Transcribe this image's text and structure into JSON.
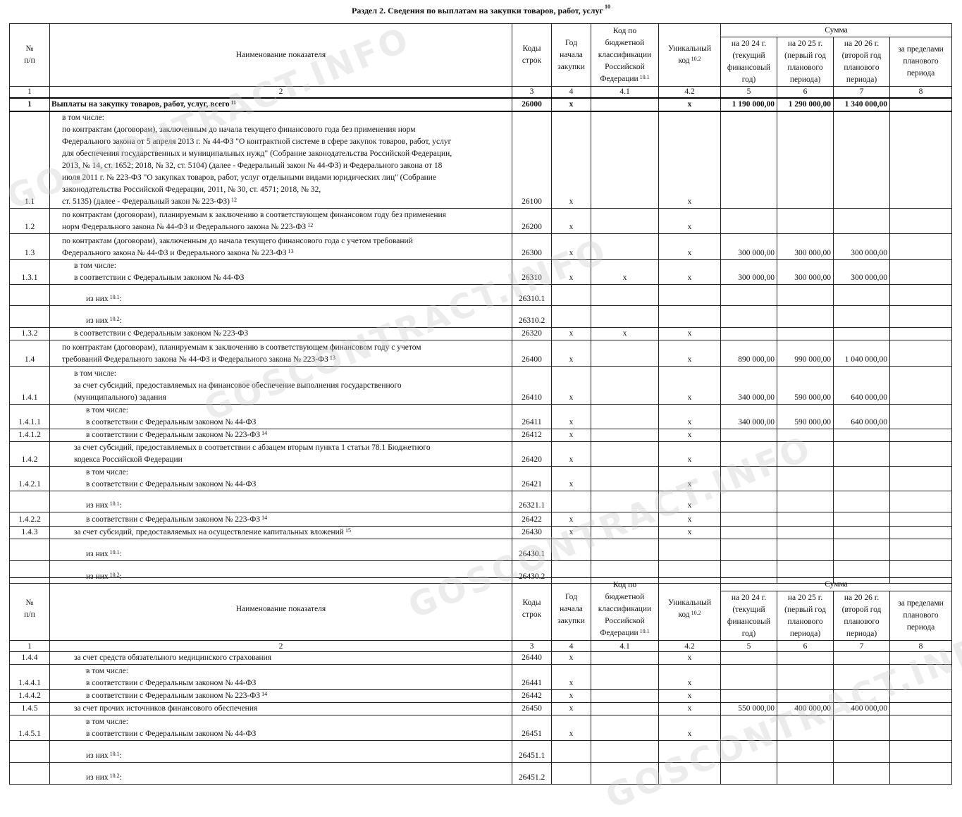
{
  "title": "Раздел 2. Сведения по выплатам на закупки товаров, работ, услуг",
  "title_sup": "10",
  "watermark": "GOSCONTRACT.INFO",
  "header": {
    "num": "№\nп/п",
    "name": "Наименование показателя",
    "code": "Коды\nстрок",
    "year": "Год\nначала\nзакупки",
    "kbk": "Код по\nбюджетной\nклассификации\nРоссийской\nФедерации",
    "kbk_sup": "10.1",
    "uniq": "Уникальный\nкод",
    "uniq_sup": "10.2",
    "sum": "Сумма",
    "y1": "на 20 24 г.\n(текущий\nфинансовый\nгод)",
    "y2": "на 20 25 г.\n(первый год\nпланового\nпериода)",
    "y3": "на 20 26 г.\n(второй год\nпланового\nпериода)",
    "beyond": "за пределами\nпланового\nпериода",
    "colnums": [
      "1",
      "2",
      "3",
      "4",
      "4.1",
      "4.2",
      "5",
      "6",
      "7",
      "8"
    ]
  },
  "table1": [
    {
      "h": 19,
      "bold": true,
      "num": "1",
      "indent": 0,
      "text": "Выплаты на закупку товаров, работ, услуг, всего",
      "sup": "11",
      "code": "26000",
      "c4": "x",
      "c41": "",
      "c42": "x",
      "c5": "1 190 000,00",
      "c6": "1 290 000,00",
      "c7": "1 340 000,00",
      "c8": ""
    },
    {
      "h": 134,
      "num": "1.1",
      "indent": 1,
      "text": "в том числе:\nпо контрактам (договорам), заключенным до начала текущего финансового года без применения норм\nФедерального закона от 5 апреля 2013 г. № 44-ФЗ \"О контрактной системе в сфере закупок товаров, работ, услуг\nдля обеспечения государственных и муниципальных нужд\" (Собрание законодательства Российской Федерации,\n2013, № 14, ст. 1652; 2018, № 32, ст. 5104) (далее - Федеральный закон № 44-ФЗ) и Федерального закона от 18\nиюля 2011 г. № 223-ФЗ \"О закупках товаров, работ, услуг отдельными видами юридических лиц\" (Собрание\nзаконодательства Российской Федерации, 2011, № 30, ст. 4571; 2018, № 32,\nст. 5135) (далее - Федеральный закон № 223-ФЗ)",
      "sup": "12",
      "code": "26100",
      "c4": "x",
      "c41": "",
      "c42": "x",
      "c5": "",
      "c6": "",
      "c7": "",
      "c8": ""
    },
    {
      "h": 36,
      "num": "1.2",
      "indent": 1,
      "text": "по контрактам (договорам), планируемым к заключению в соответствующем финансовом году без применения\nнорм Федерального закона № 44-ФЗ и Федерального закона № 223-ФЗ",
      "sup": "12",
      "code": "26200",
      "c4": "x",
      "c41": "",
      "c42": "x",
      "c5": "",
      "c6": "",
      "c7": "",
      "c8": ""
    },
    {
      "h": 37,
      "num": "1.3",
      "indent": 1,
      "text": "по контрактам (договорам), заключенным до начала текущего финансового года с учетом требований\nФедерального закона № 44-ФЗ и Федерального закона № 223-ФЗ",
      "sup": "13",
      "code": "26300",
      "c4": "x",
      "c41": "",
      "c42": "x",
      "c5": "300 000,00",
      "c6": "300 000,00",
      "c7": "300 000,00",
      "c8": ""
    },
    {
      "h": 34,
      "num": "1.3.1",
      "indent": 2,
      "text": "в том числе:\nв соответствии с Федеральным законом № 44-ФЗ",
      "sup": "",
      "code": "26310",
      "c4": "x",
      "c41": "x",
      "c42": "x",
      "c5": "300 000,00",
      "c6": "300 000,00",
      "c7": "300 000,00",
      "c8": ""
    },
    {
      "h": 30,
      "num": "",
      "indent": 3,
      "text": "из них",
      "sup": "10.1",
      "tail": ":",
      "code": "26310.1",
      "c4": "",
      "c41": "",
      "c42": "",
      "c5": "",
      "c6": "",
      "c7": "",
      "c8": ""
    },
    {
      "h": 31,
      "num": "",
      "indent": 3,
      "text": "из них",
      "sup": "10.2",
      "tail": ":",
      "code": "26310.2",
      "c4": "",
      "c41": "",
      "c42": "",
      "c5": "",
      "c6": "",
      "c7": "",
      "c8": ""
    },
    {
      "h": 16,
      "num": "1.3.2",
      "indent": 2,
      "text": "в соответствии с Федеральным законом № 223-ФЗ",
      "sup": "",
      "code": "26320",
      "c4": "x",
      "c41": "x",
      "c42": "x",
      "c5": "",
      "c6": "",
      "c7": "",
      "c8": ""
    },
    {
      "h": 37,
      "num": "1.4",
      "indent": 1,
      "text": "по контрактам (договорам), планируемым к заключению в соответствующем финансовом году с учетом\nтребований Федерального закона № 44-ФЗ и Федерального закона № 223-ФЗ",
      "sup": "13",
      "code": "26400",
      "c4": "x",
      "c41": "",
      "c42": "x",
      "c5": "890 000,00",
      "c6": "990 000,00",
      "c7": "1 040 000,00",
      "c8": ""
    },
    {
      "h": 54,
      "num": "1.4.1",
      "indent": 2,
      "text": "в том числе:\nза счет субсидий, предоставляемых на финансовое обеспечение выполнения государственного\n(муниципального) задания",
      "sup": "",
      "code": "26410",
      "c4": "x",
      "c41": "",
      "c42": "x",
      "c5": "340 000,00",
      "c6": "590 000,00",
      "c7": "640 000,00",
      "c8": ""
    },
    {
      "h": 33,
      "num": "1.4.1.1",
      "indent": 3,
      "text": "в том числе:\nв соответствии с Федеральным законом № 44-ФЗ",
      "sup": "",
      "code": "26411",
      "c4": "x",
      "c41": "",
      "c42": "x",
      "c5": "340 000,00",
      "c6": "590 000,00",
      "c7": "640 000,00",
      "c8": ""
    },
    {
      "h": 17,
      "num": "1.4.1.2",
      "indent": 3,
      "text": "в соответствии с Федеральным законом № 223-ФЗ",
      "sup": "14",
      "code": "26412",
      "c4": "x",
      "c41": "",
      "c42": "x",
      "c5": "",
      "c6": "",
      "c7": "",
      "c8": ""
    },
    {
      "h": 34,
      "num": "1.4.2",
      "indent": 2,
      "text": "за счет субсидий, предоставляемых в соответствии с абзацем вторым пункта 1 статьи 78.1 Бюджетного\nкодекса Российской Федерации",
      "sup": "",
      "code": "26420",
      "c4": "x",
      "c41": "",
      "c42": "x",
      "c5": "",
      "c6": "",
      "c7": "",
      "c8": ""
    },
    {
      "h": 34,
      "num": "1.4.2.1",
      "indent": 3,
      "text": "в том числе:\nв соответствии с Федеральным законом № 44-ФЗ",
      "sup": "",
      "code": "26421",
      "c4": "x",
      "c41": "",
      "c42": "x",
      "c5": "",
      "c6": "",
      "c7": "",
      "c8": ""
    },
    {
      "h": 30,
      "num": "",
      "indent": 3,
      "text": "из них",
      "sup": "10.1",
      "tail": ":",
      "code": "26321.1",
      "c4": "",
      "c41": "",
      "c42": "x",
      "c5": "",
      "c6": "",
      "c7": "",
      "c8": ""
    },
    {
      "h": 20,
      "num": "1.4.2.2",
      "indent": 3,
      "text": "в соответствии с Федеральным законом № 223-ФЗ",
      "sup": "14",
      "code": "26422",
      "c4": "x",
      "c41": "",
      "c42": "x",
      "c5": "",
      "c6": "",
      "c7": "",
      "c8": ""
    },
    {
      "h": 18,
      "num": "1.4.3",
      "indent": 2,
      "text": "за счет субсидий, предоставляемых на осуществление капитальных вложений",
      "sup": "15",
      "code": "26430",
      "c4": "x",
      "c41": "",
      "c42": "x",
      "c5": "",
      "c6": "",
      "c7": "",
      "c8": ""
    },
    {
      "h": 31,
      "num": "",
      "indent": 3,
      "text": "из них",
      "sup": "10.1",
      "tail": ":",
      "code": "26430.1",
      "c4": "",
      "c41": "",
      "c42": "",
      "c5": "",
      "c6": "",
      "c7": "",
      "c8": ""
    },
    {
      "h": 32,
      "num": "",
      "indent": 3,
      "text": "из них",
      "sup": "10.2",
      "tail": ":",
      "code": "26430.2",
      "c4": "",
      "c41": "",
      "c42": "",
      "c5": "",
      "c6": "",
      "c7": "",
      "c8": ""
    }
  ],
  "table2": [
    {
      "h": 18,
      "num": "1.4.4",
      "indent": 2,
      "text": "за счет средств обязательного медицинского страхования",
      "sup": "",
      "code": "26440",
      "c4": "x",
      "c41": "",
      "c42": "x",
      "c5": "",
      "c6": "",
      "c7": "",
      "c8": ""
    },
    {
      "h": 36,
      "num": "1.4.4.1",
      "indent": 3,
      "text": "в том числе:\nв соответствии с Федеральным законом № 44-ФЗ",
      "sup": "",
      "code": "26441",
      "c4": "x",
      "c41": "",
      "c42": "x",
      "c5": "",
      "c6": "",
      "c7": "",
      "c8": ""
    },
    {
      "h": 17,
      "num": "1.4.4.2",
      "indent": 3,
      "text": "в соответствии с Федеральным законом № 223-ФЗ",
      "sup": "14",
      "code": "26442",
      "c4": "x",
      "c41": "",
      "c42": "x",
      "c5": "",
      "c6": "",
      "c7": "",
      "c8": ""
    },
    {
      "h": 17,
      "num": "1.4.5",
      "indent": 2,
      "text": "за счет прочих источников финансового обеспечения",
      "sup": "",
      "code": "26450",
      "c4": "x",
      "c41": "",
      "c42": "x",
      "c5": "550 000,00",
      "c6": "400 000,00",
      "c7": "400 000,00",
      "c8": ""
    },
    {
      "h": 36,
      "num": "1.4.5.1",
      "indent": 3,
      "text": "в том числе:\nв соответствии с Федеральным законом № 44-ФЗ",
      "sup": "",
      "code": "26451",
      "c4": "x",
      "c41": "",
      "c42": "x",
      "c5": "",
      "c6": "",
      "c7": "",
      "c8": ""
    },
    {
      "h": 31,
      "num": "",
      "indent": 3,
      "text": "из них",
      "sup": "10.1",
      "tail": ":",
      "code": "26451.1",
      "c4": "",
      "c41": "",
      "c42": "",
      "c5": "",
      "c6": "",
      "c7": "",
      "c8": ""
    },
    {
      "h": 31,
      "num": "",
      "indent": 3,
      "text": "из них",
      "sup": "10.2",
      "tail": ":",
      "code": "26451.2",
      "c4": "",
      "c41": "",
      "c42": "",
      "c5": "",
      "c6": "",
      "c7": "",
      "c8": ""
    }
  ]
}
